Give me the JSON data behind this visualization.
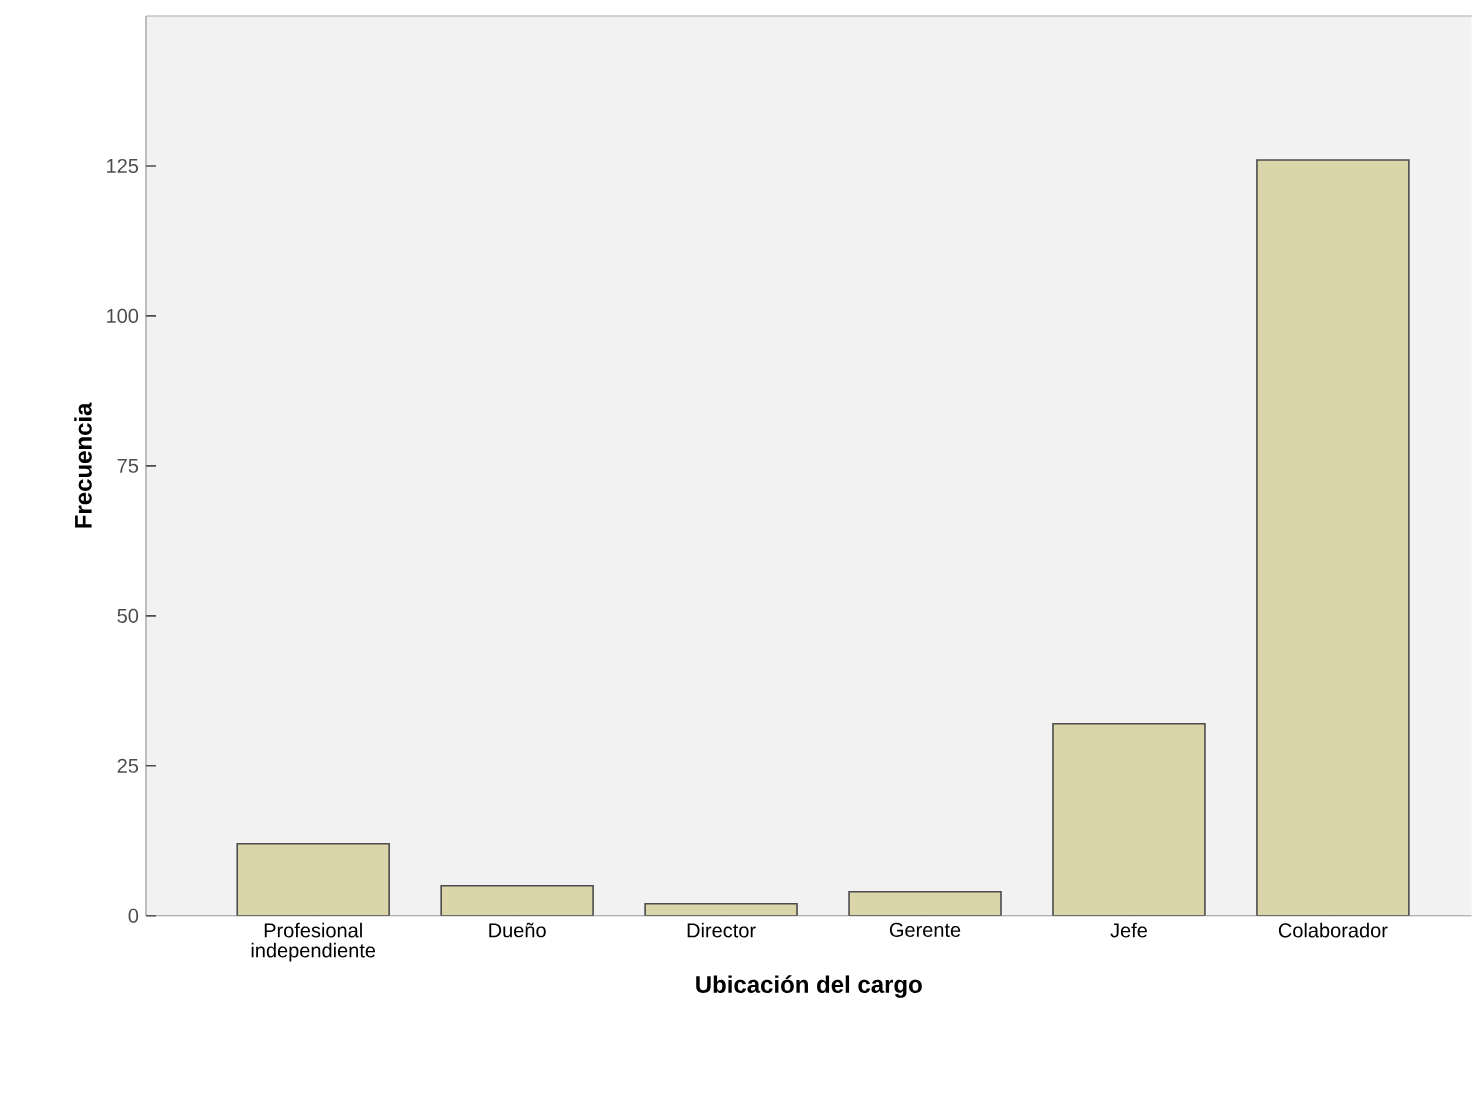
{
  "chart_data": {
    "type": "bar",
    "xlabel": "Ubicación del cargo",
    "ylabel": "Frecuencia",
    "categories": [
      "Profesional independiente",
      "Dueño",
      "Director",
      "Gerente",
      "Jefe",
      "Colaborador"
    ],
    "values": [
      12,
      5,
      2,
      4,
      32,
      126
    ],
    "color": "#dad6aa",
    "ylim": [
      0,
      150
    ],
    "yticks": [
      0,
      25,
      50,
      75,
      100,
      125
    ],
    "grid": false
  }
}
